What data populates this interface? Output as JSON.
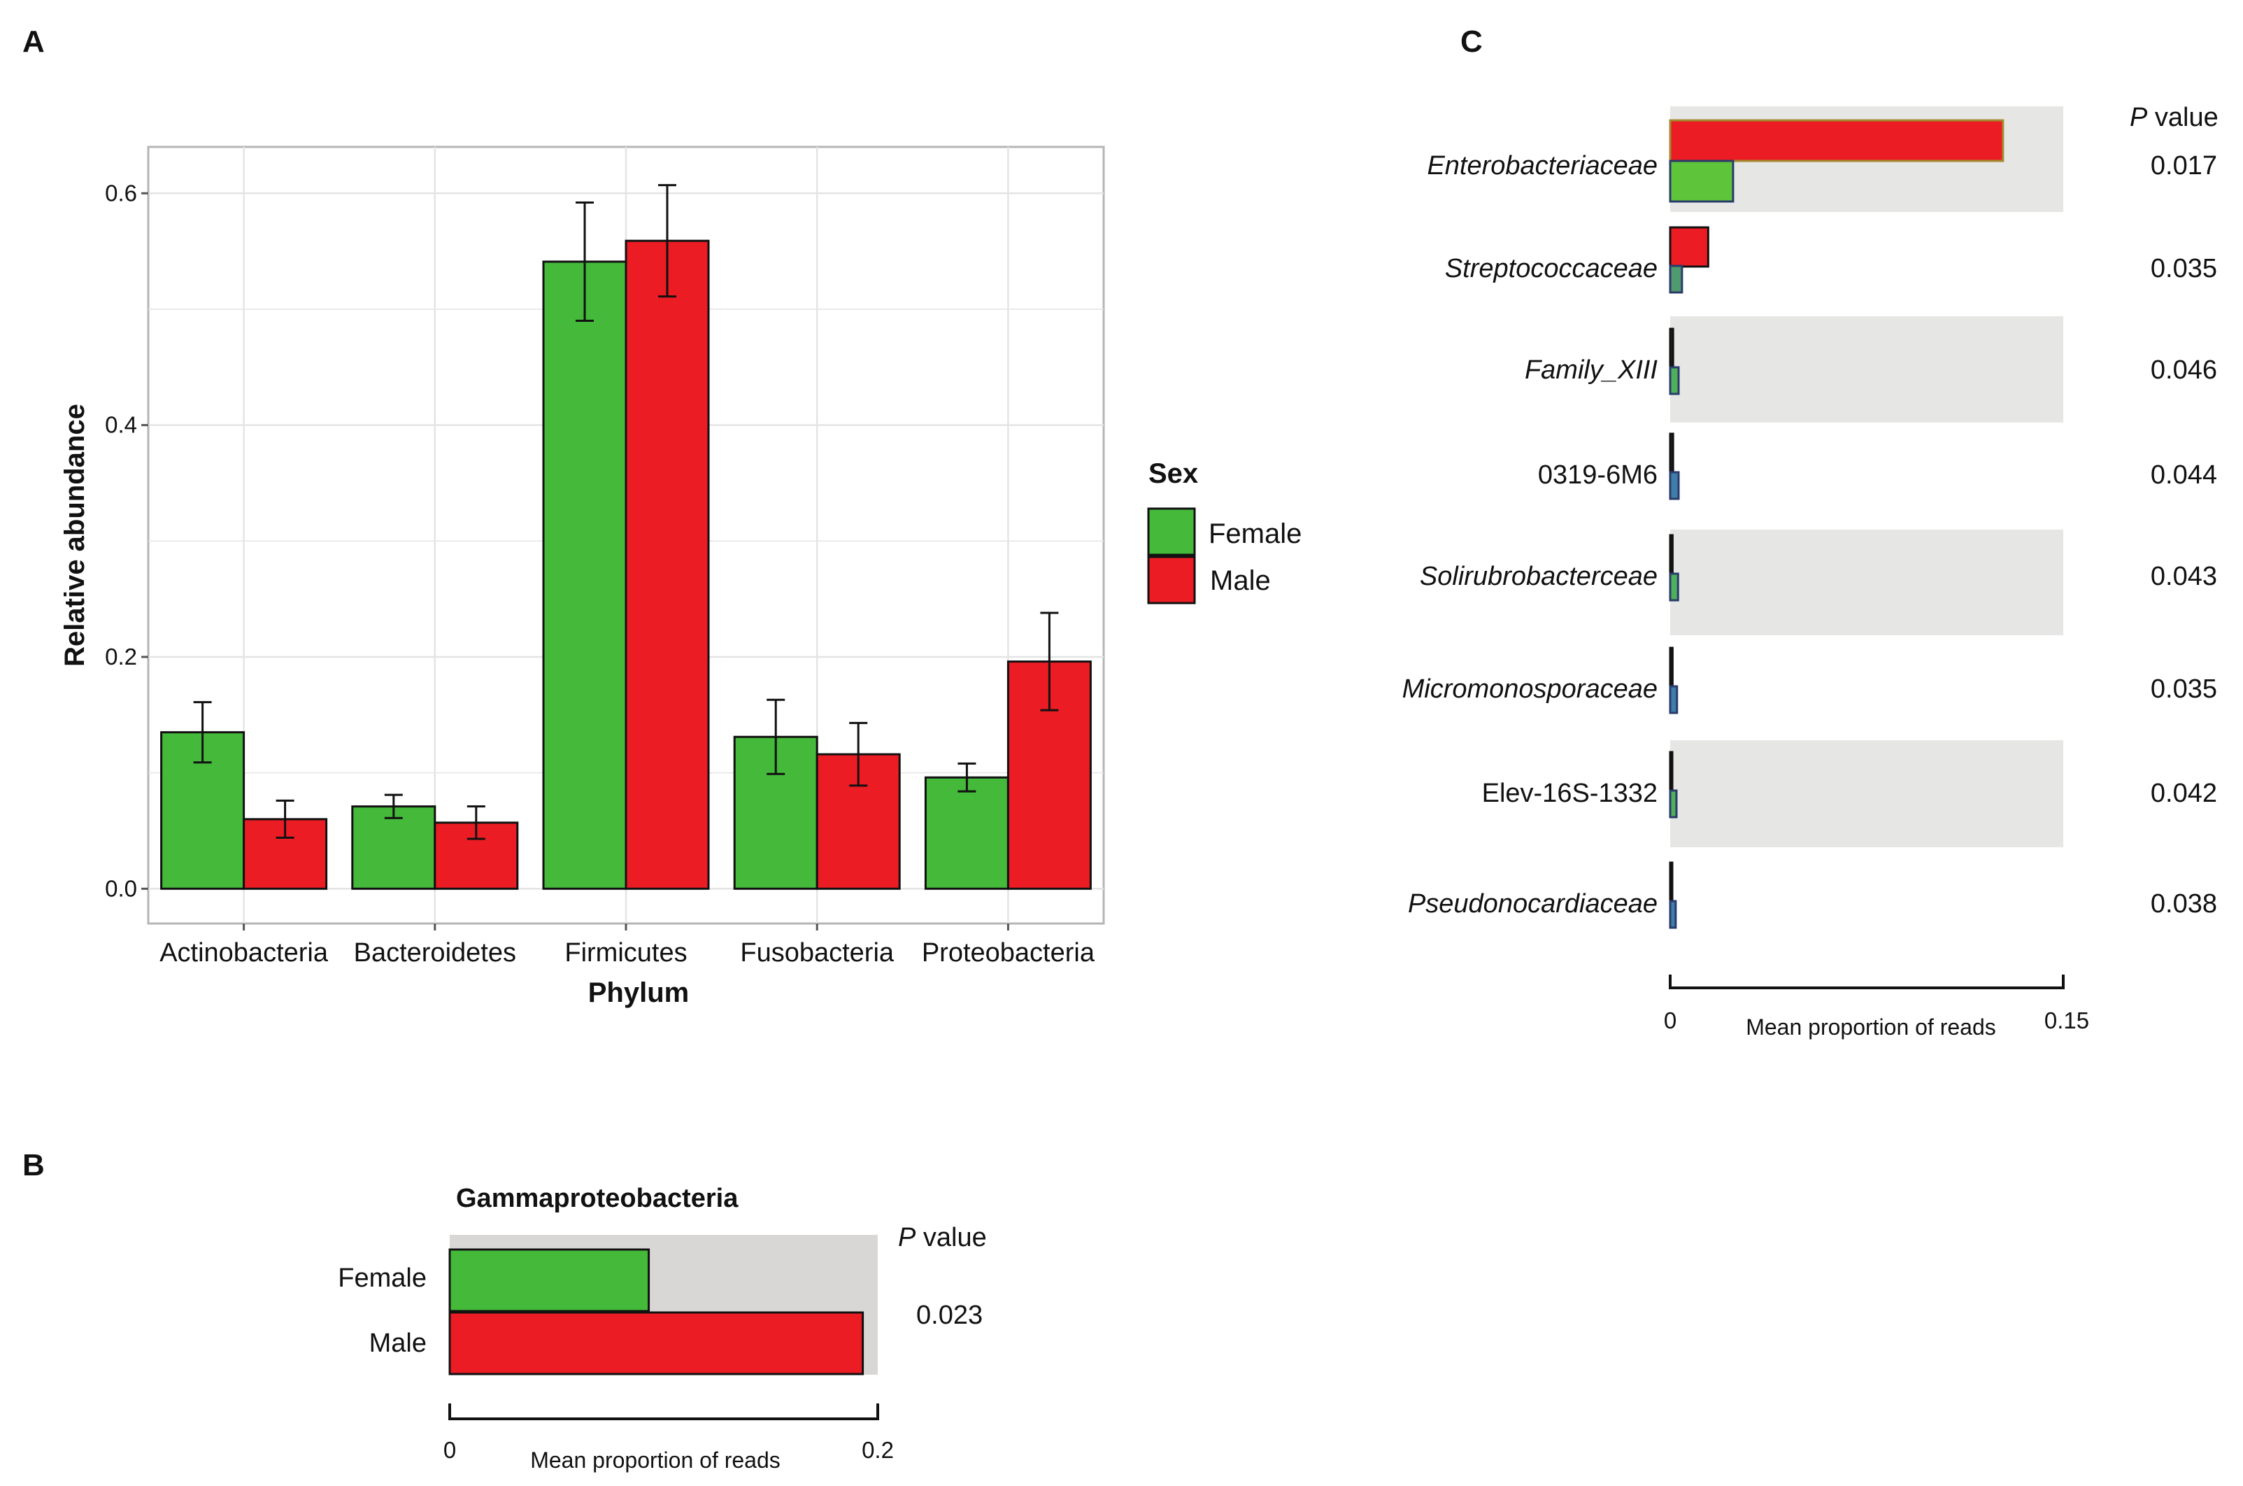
{
  "panels": {
    "a": {
      "letter": "A"
    },
    "b": {
      "letter": "B"
    },
    "c": {
      "letter": "C"
    }
  },
  "colors": {
    "female": "#44b93a",
    "male": "#ec1c24",
    "outline": "#111111",
    "panel_bg_b": "#d9d6d6",
    "stripe_c": "#e6e6e4",
    "grid": "#e4e4e4"
  },
  "chart_data": [
    {
      "id": "A",
      "type": "bar",
      "title": "",
      "xlabel": "Phylum",
      "ylabel": "Relative abundance",
      "ylim": [
        -0.03,
        0.64
      ],
      "yticks": [
        0.0,
        0.2,
        0.4,
        0.6
      ],
      "ytick_labels": [
        "0.0",
        "0.2",
        "0.4",
        "0.6"
      ],
      "grid": true,
      "categories": [
        "Actinobacteria",
        "Bacteroidetes",
        "Firmicutes",
        "Fusobacteria",
        "Proteobacteria"
      ],
      "series": [
        {
          "name": "Female",
          "values": [
            0.135,
            0.071,
            0.541,
            0.131,
            0.096
          ],
          "err": [
            0.026,
            0.01,
            0.051,
            0.032,
            0.012
          ]
        },
        {
          "name": "Male",
          "values": [
            0.06,
            0.057,
            0.559,
            0.116,
            0.196
          ],
          "err": [
            0.016,
            0.014,
            0.048,
            0.027,
            0.042
          ]
        }
      ],
      "legend": {
        "title": "Sex",
        "position": "right",
        "entries": [
          "Female",
          "Male"
        ]
      }
    },
    {
      "id": "B",
      "type": "bar",
      "orientation": "horizontal",
      "title": "Gammaproteobacteria",
      "xlabel": "Mean proportion of reads",
      "xlim": [
        0,
        0.2
      ],
      "xtick_labels": [
        "0",
        "0.2"
      ],
      "pvalue_header_italic": "P",
      "pvalue_header_rest": " value",
      "categories": [
        "Female",
        "Male"
      ],
      "values": [
        0.093,
        0.193
      ],
      "pvalue": "0.023"
    },
    {
      "id": "C",
      "type": "bar",
      "orientation": "horizontal",
      "xlabel": "Mean proportion of reads",
      "xlim": [
        0,
        0.15
      ],
      "xtick_labels": [
        "0",
        "0.15"
      ],
      "pvalue_header_italic": "P",
      "pvalue_header_rest": " value",
      "rows": [
        {
          "label": "Enterobacteriaceae",
          "italic": true,
          "male": 0.127,
          "female": 0.024,
          "pvalue": "0.017"
        },
        {
          "label": "Streptococcaceae",
          "italic": true,
          "male": 0.0145,
          "female": 0.0045,
          "pvalue": "0.035"
        },
        {
          "label": "Family_XIII",
          "italic": true,
          "male": 0.0011,
          "female": 0.0032,
          "pvalue": "0.046"
        },
        {
          "label": "0319-6M6",
          "italic": false,
          "male": 0.0011,
          "female": 0.0032,
          "pvalue": "0.044"
        },
        {
          "label": "Solirubrobacterceae",
          "italic": true,
          "male": 0.0009,
          "female": 0.003,
          "pvalue": "0.043"
        },
        {
          "label": "Micromonosporaceae",
          "italic": true,
          "male": 0.0009,
          "female": 0.0026,
          "pvalue": "0.035"
        },
        {
          "label": "Elev-16S-1332",
          "italic": false,
          "male": 0.0008,
          "female": 0.0024,
          "pvalue": "0.042"
        },
        {
          "label": "Pseudonocardiaceae",
          "italic": true,
          "male": 0.0008,
          "female": 0.0021,
          "pvalue": "0.038"
        }
      ]
    }
  ]
}
